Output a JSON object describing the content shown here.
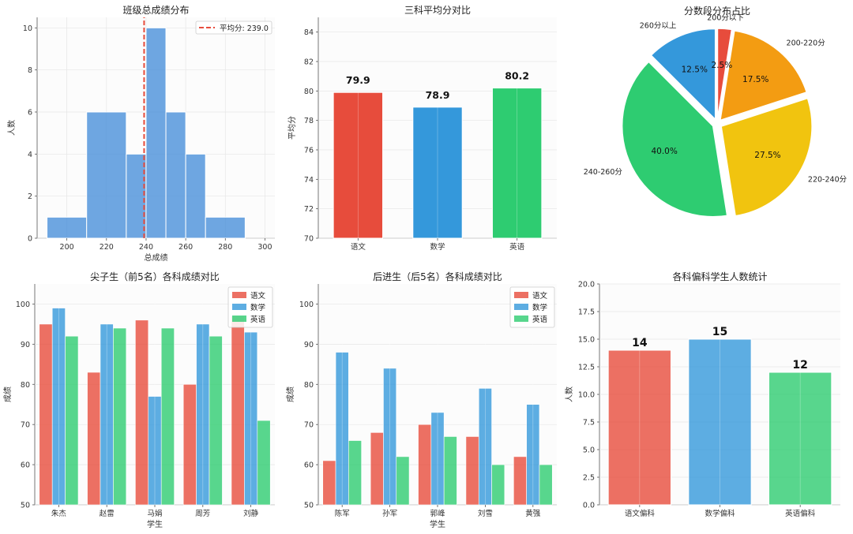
{
  "chart_data": [
    {
      "type": "bar",
      "title": "班级总成绩分布",
      "xlabel": "总成绩",
      "ylabel": "人数",
      "bins": [
        [
          190,
          210
        ],
        [
          210,
          230
        ],
        [
          230,
          240
        ],
        [
          240,
          250
        ],
        [
          250,
          260
        ],
        [
          260,
          270
        ],
        [
          270,
          290
        ]
      ],
      "values": [
        1,
        6,
        4,
        10,
        6,
        4,
        1
      ],
      "xlim": [
        185,
        305
      ],
      "ylim": [
        0,
        10.5
      ],
      "xticks": [
        "200",
        "220",
        "240",
        "260",
        "280",
        "300"
      ],
      "yticks": [
        "0",
        "2",
        "4",
        "6",
        "8",
        "10"
      ],
      "mean_line": {
        "value": 239,
        "label": "平均分: 239.0",
        "color": "#e74c3c"
      },
      "legend": "top-right",
      "color": "#4a90d9",
      "grid": true
    },
    {
      "type": "bar",
      "title": "三科平均分对比",
      "ylabel": "平均分",
      "categories": [
        "语文",
        "数学",
        "英语"
      ],
      "values": [
        79.9,
        78.9,
        80.2
      ],
      "data_labels": [
        "79.9",
        "78.9",
        "80.2"
      ],
      "colors": [
        "#e74c3c",
        "#3498db",
        "#2ecc71"
      ],
      "ylim": [
        70,
        85
      ],
      "yticks": [
        "70",
        "72",
        "74",
        "76",
        "78",
        "80",
        "82",
        "84"
      ],
      "grid": true
    },
    {
      "type": "pie",
      "title": "分数段分布占比",
      "labels": [
        "260分以上",
        "240-260分",
        "220-240分",
        "200-220分",
        "200分以下"
      ],
      "values": [
        12.5,
        40.0,
        27.5,
        17.5,
        2.5
      ],
      "pct_labels": [
        "12.5%",
        "40.0%",
        "27.5%",
        "17.5%",
        "2.5%"
      ],
      "colors": [
        "#3498db",
        "#2ecc71",
        "#f1c40f",
        "#f39c12",
        "#e74c3c"
      ]
    },
    {
      "type": "bar",
      "title": "尖子生（前5名）各科成绩对比",
      "xlabel": "学生",
      "ylabel": "成绩",
      "categories": [
        "朱杰",
        "赵雷",
        "马娟",
        "周芳",
        "刘静"
      ],
      "series": [
        {
          "name": "语文",
          "values": [
            95,
            83,
            96,
            80,
            97
          ],
          "color": "#e74c3c"
        },
        {
          "name": "数学",
          "values": [
            99,
            95,
            77,
            95,
            93
          ],
          "color": "#3498db"
        },
        {
          "name": "英语",
          "values": [
            92,
            94,
            94,
            92,
            71
          ],
          "color": "#2ecc71"
        }
      ],
      "ylim": [
        50,
        105
      ],
      "yticks": [
        "50",
        "60",
        "70",
        "80",
        "90",
        "100"
      ],
      "legend": "top-right",
      "grid": true
    },
    {
      "type": "bar",
      "title": "后进生（后5名）各科成绩对比",
      "xlabel": "学生",
      "ylabel": "成绩",
      "categories": [
        "陈军",
        "孙军",
        "郭峰",
        "刘雪",
        "黄强"
      ],
      "series": [
        {
          "name": "语文",
          "values": [
            61,
            68,
            70,
            67,
            62
          ],
          "color": "#e74c3c"
        },
        {
          "name": "数学",
          "values": [
            88,
            84,
            73,
            79,
            75
          ],
          "color": "#3498db"
        },
        {
          "name": "英语",
          "values": [
            66,
            62,
            67,
            60,
            60
          ],
          "color": "#2ecc71"
        }
      ],
      "ylim": [
        50,
        105
      ],
      "yticks": [
        "50",
        "60",
        "70",
        "80",
        "90",
        "100"
      ],
      "legend": "top-right",
      "grid": true
    },
    {
      "type": "bar",
      "title": "各科偏科学生人数统计",
      "ylabel": "人数",
      "categories": [
        "语文偏科",
        "数学偏科",
        "英语偏科"
      ],
      "values": [
        14,
        15,
        12
      ],
      "data_labels": [
        "14",
        "15",
        "12"
      ],
      "colors": [
        "#e74c3c",
        "#3498db",
        "#2ecc71"
      ],
      "ylim": [
        0,
        20
      ],
      "yticks": [
        "0.0",
        "2.5",
        "5.0",
        "7.5",
        "10.0",
        "12.5",
        "15.0",
        "17.5",
        "20.0"
      ],
      "grid": true
    }
  ]
}
